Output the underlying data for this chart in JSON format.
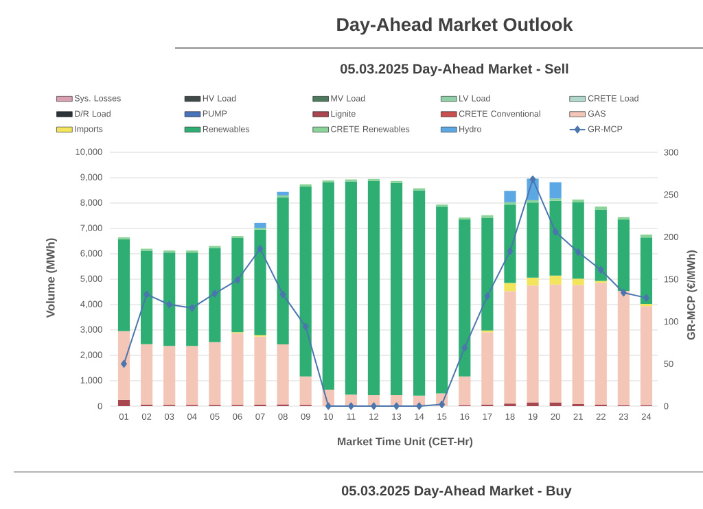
{
  "chart_data": {
    "type": "bar",
    "title": "Day-Ahead Market Outlook",
    "subtitle": "05.03.2025 Day-Ahead Market - Sell",
    "xlabel": "Market Time Unit (CET-Hr)",
    "ylabel": "Volume (MWh)",
    "y2label": "GR-MCP (€/MWh)",
    "annotations": [
      "05.03.2025 Day-Ahead Market - Buy"
    ],
    "categories": [
      "01",
      "02",
      "03",
      "04",
      "05",
      "06",
      "07",
      "08",
      "09",
      "10",
      "11",
      "12",
      "13",
      "14",
      "15",
      "16",
      "17",
      "18",
      "19",
      "20",
      "21",
      "22",
      "23",
      "24"
    ],
    "stacked": true,
    "grid": "y",
    "legend": "top",
    "ylim": [
      0,
      10000
    ],
    "yticks": [
      0,
      {
        "value": 1000,
        "label": "1,000"
      },
      {
        "value": 2000,
        "label": "2,000"
      },
      {
        "value": 3000,
        "label": "3,000"
      },
      {
        "value": 4000,
        "label": "4,000"
      },
      {
        "value": 5000,
        "label": "5,000"
      },
      {
        "value": 6000,
        "label": "6,000"
      },
      {
        "value": 7000,
        "label": "7,000"
      },
      {
        "value": 8000,
        "label": "8,000"
      },
      {
        "value": 9000,
        "label": "9,000"
      },
      {
        "value": 10000,
        "label": "10,000"
      }
    ],
    "y2lim": [
      0,
      300
    ],
    "y2ticks": [
      0,
      50,
      100,
      150,
      200,
      250,
      300
    ],
    "series": [
      {
        "name": "Sys. Losses",
        "color": "#d8a0b0",
        "values": [
          null,
          null,
          null,
          null,
          null,
          null,
          null,
          null,
          null,
          null,
          null,
          null,
          null,
          null,
          null,
          null,
          null,
          null,
          null,
          null,
          null,
          null,
          null,
          null
        ]
      },
      {
        "name": "HV Load",
        "color": "#404848",
        "values": [
          null,
          null,
          null,
          null,
          null,
          null,
          null,
          null,
          null,
          null,
          null,
          null,
          null,
          null,
          null,
          null,
          null,
          null,
          null,
          null,
          null,
          null,
          null,
          null
        ]
      },
      {
        "name": "MV Load",
        "color": "#4e7a5e",
        "values": [
          null,
          null,
          null,
          null,
          null,
          null,
          null,
          null,
          null,
          null,
          null,
          null,
          null,
          null,
          null,
          null,
          null,
          null,
          null,
          null,
          null,
          null,
          null,
          null
        ]
      },
      {
        "name": "LV Load",
        "color": "#8fd0a8",
        "values": [
          null,
          null,
          null,
          null,
          null,
          null,
          null,
          null,
          null,
          null,
          null,
          null,
          null,
          null,
          null,
          null,
          null,
          null,
          null,
          null,
          null,
          null,
          null,
          null
        ]
      },
      {
        "name": "CRETE Load",
        "color": "#b0d8cc",
        "values": [
          null,
          null,
          null,
          null,
          null,
          null,
          null,
          null,
          null,
          null,
          null,
          null,
          null,
          null,
          null,
          null,
          null,
          null,
          null,
          null,
          null,
          null,
          null,
          null
        ]
      },
      {
        "name": "D/R Load",
        "color": "#2c343a",
        "values": [
          null,
          null,
          null,
          null,
          null,
          null,
          null,
          null,
          null,
          null,
          null,
          null,
          null,
          null,
          null,
          null,
          null,
          null,
          null,
          null,
          null,
          null,
          null,
          null
        ]
      },
      {
        "name": "PUMP",
        "color": "#4a72b8",
        "values": [
          null,
          null,
          null,
          null,
          null,
          null,
          null,
          null,
          null,
          null,
          null,
          null,
          null,
          null,
          null,
          null,
          null,
          null,
          null,
          null,
          null,
          null,
          null,
          null
        ]
      },
      {
        "name": "Lignite",
        "color": "#a8474f",
        "values": [
          250,
          60,
          50,
          50,
          50,
          50,
          60,
          70,
          50,
          0,
          0,
          0,
          0,
          0,
          0,
          40,
          60,
          100,
          150,
          150,
          80,
          60,
          40,
          40
        ]
      },
      {
        "name": "CRETE Conventional",
        "color": "#c8504f",
        "values": [
          null,
          null,
          null,
          null,
          null,
          null,
          null,
          null,
          null,
          null,
          null,
          null,
          null,
          null,
          null,
          null,
          null,
          null,
          null,
          null,
          null,
          null,
          null,
          null
        ]
      },
      {
        "name": "GAS",
        "color": "#f3c6b8",
        "values": [
          2700,
          2380,
          2320,
          2320,
          2470,
          2820,
          2680,
          2360,
          1120,
          650,
          450,
          430,
          430,
          410,
          500,
          1130,
          2850,
          4430,
          4600,
          4640,
          4690,
          4800,
          4500,
          3900
        ]
      },
      {
        "name": "Imports",
        "color": "#f2e45c",
        "values": [
          0,
          0,
          0,
          0,
          0,
          40,
          60,
          0,
          0,
          0,
          0,
          0,
          0,
          0,
          0,
          0,
          70,
          320,
          310,
          350,
          250,
          70,
          0,
          90
        ]
      },
      {
        "name": "Renewables",
        "color": "#2fae74",
        "values": [
          3620,
          3680,
          3680,
          3680,
          3710,
          3710,
          4150,
          5800,
          7480,
          8160,
          8400,
          8440,
          8360,
          8090,
          7360,
          6180,
          4440,
          3090,
          2960,
          2950,
          3020,
          2810,
          2820,
          2610
        ]
      },
      {
        "name": "CRETE Renewables",
        "color": "#8ad49a",
        "values": [
          80,
          80,
          80,
          80,
          80,
          80,
          70,
          70,
          90,
          80,
          80,
          80,
          80,
          80,
          80,
          80,
          100,
          90,
          90,
          90,
          100,
          120,
          90,
          120
        ]
      },
      {
        "name": "Hydro",
        "color": "#5ca8e4",
        "values": [
          0,
          0,
          0,
          0,
          0,
          0,
          200,
          140,
          0,
          0,
          0,
          0,
          0,
          0,
          0,
          0,
          0,
          450,
          850,
          640,
          0,
          0,
          0,
          0
        ]
      },
      {
        "name": "GR-MCP",
        "type": "line",
        "axis": "y2",
        "marker": "diamond",
        "color": "#4b76ad",
        "values": [
          50,
          132,
          120,
          116,
          133,
          149,
          186,
          132,
          94,
          0,
          0,
          0,
          0,
          0,
          2,
          69,
          130,
          183,
          268,
          206,
          182,
          161,
          134,
          128
        ]
      }
    ]
  }
}
